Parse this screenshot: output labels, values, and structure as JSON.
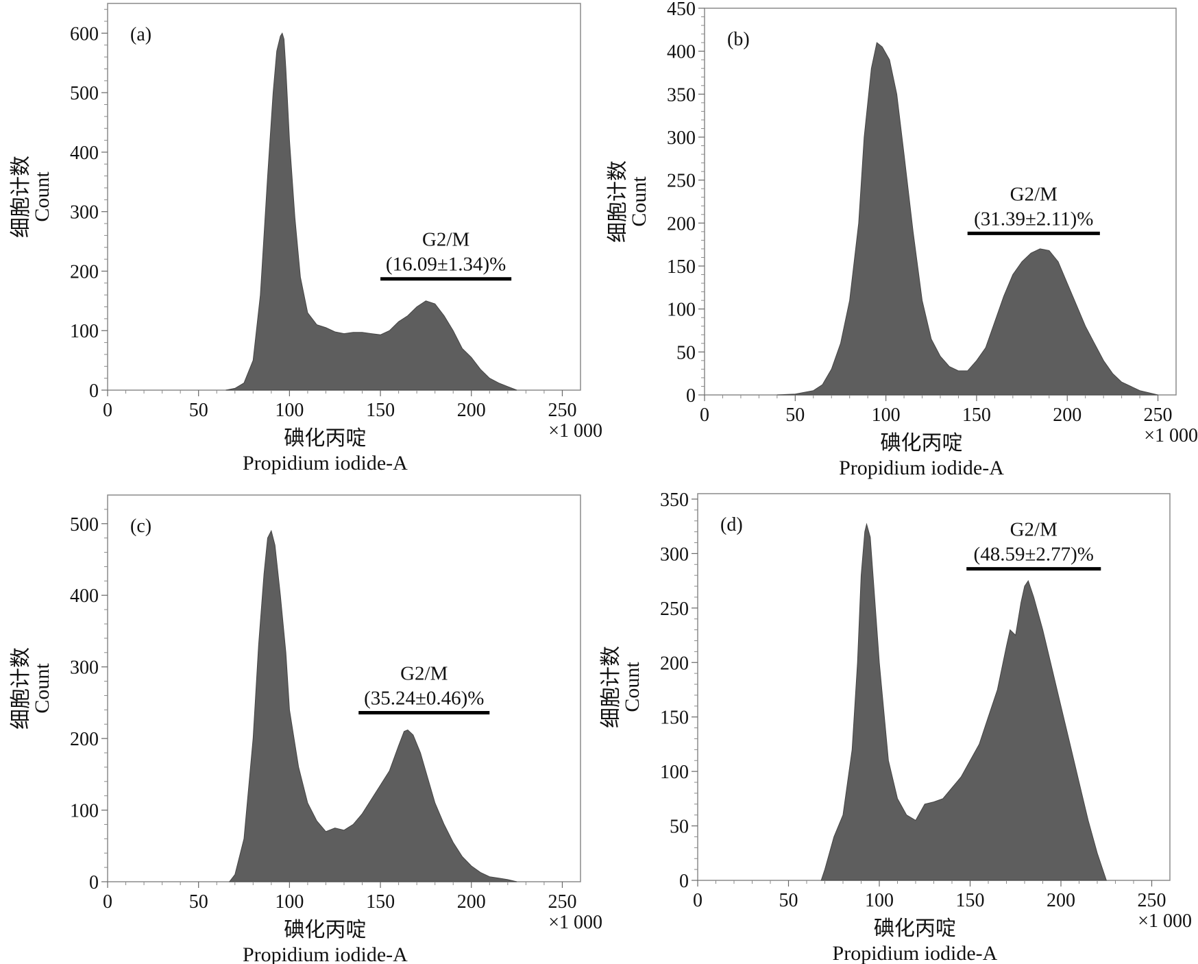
{
  "chart_data": [
    {
      "type": "area",
      "panel_label": "(a)",
      "ylabel_cn": "细胞计数",
      "ylabel_en": "Count",
      "xlabel_cn": "碘化丙啶",
      "xlabel_en": "Propidium iodide-A",
      "x_multiplier": "×1 000",
      "xlim": [
        0,
        260
      ],
      "ylim": [
        0,
        650
      ],
      "x_ticks": [
        0,
        50,
        100,
        150,
        200,
        250
      ],
      "y_ticks": [
        0,
        100,
        200,
        300,
        400,
        500,
        600
      ],
      "gate": {
        "label": "G2/M",
        "value": "(16.09±1.34)%",
        "x_start": 150,
        "x_end": 222,
        "y": 187
      },
      "series": [
        {
          "x": [
            65,
            70,
            75,
            80,
            84,
            88,
            91,
            93,
            95,
            96,
            97,
            98,
            100,
            103,
            106,
            110,
            115,
            120,
            125,
            130,
            135,
            140,
            145,
            150,
            155,
            160,
            165,
            170,
            175,
            180,
            185,
            190,
            195,
            200,
            205,
            210,
            215,
            220,
            225
          ],
          "y": [
            0,
            3,
            12,
            50,
            160,
            360,
            500,
            570,
            595,
            600,
            590,
            540,
            420,
            290,
            190,
            130,
            110,
            105,
            98,
            95,
            97,
            97,
            95,
            93,
            100,
            115,
            125,
            140,
            150,
            145,
            125,
            100,
            70,
            55,
            35,
            20,
            12,
            6,
            0
          ]
        }
      ]
    },
    {
      "type": "area",
      "panel_label": "(b)",
      "ylabel_cn": "细胞计数",
      "ylabel_en": "Count",
      "xlabel_cn": "碘化丙啶",
      "xlabel_en": "Propidium iodide-A",
      "x_multiplier": "×1 000",
      "xlim": [
        0,
        260
      ],
      "ylim": [
        0,
        450
      ],
      "x_ticks": [
        0,
        50,
        100,
        150,
        200,
        250
      ],
      "y_ticks": [
        0,
        50,
        100,
        150,
        200,
        250,
        300,
        350,
        400,
        450
      ],
      "gate": {
        "label": "G2/M",
        "value": "(31.39±2.11)%",
        "x_start": 145,
        "x_end": 218,
        "y": 188
      },
      "series": [
        {
          "x": [
            40,
            50,
            60,
            65,
            70,
            75,
            80,
            85,
            88,
            92,
            95,
            98,
            102,
            106,
            110,
            115,
            120,
            125,
            130,
            135,
            140,
            145,
            150,
            155,
            160,
            165,
            170,
            175,
            180,
            185,
            190,
            195,
            200,
            205,
            210,
            215,
            220,
            225,
            230,
            240,
            250
          ],
          "y": [
            0,
            1,
            5,
            12,
            30,
            60,
            110,
            200,
            300,
            380,
            410,
            405,
            390,
            350,
            280,
            190,
            110,
            65,
            45,
            33,
            28,
            28,
            40,
            55,
            85,
            115,
            140,
            155,
            165,
            170,
            168,
            155,
            130,
            105,
            80,
            60,
            40,
            25,
            15,
            5,
            0
          ]
        }
      ]
    },
    {
      "type": "area",
      "panel_label": "(c)",
      "ylabel_cn": "细胞计数",
      "ylabel_en": "Count",
      "xlabel_cn": "碘化丙啶",
      "xlabel_en": "Propidium iodide-A",
      "x_multiplier": "×1 000",
      "xlim": [
        0,
        260
      ],
      "ylim": [
        0,
        540
      ],
      "x_ticks": [
        0,
        50,
        100,
        150,
        200,
        250
      ],
      "y_ticks": [
        0,
        100,
        200,
        300,
        400,
        500
      ],
      "gate": {
        "label": "G2/M",
        "value": "(35.24±0.46)%",
        "x_start": 138,
        "x_end": 210,
        "y": 236
      },
      "series": [
        {
          "x": [
            67,
            70,
            75,
            80,
            83,
            86,
            88,
            90,
            92,
            95,
            98,
            100,
            105,
            110,
            115,
            120,
            125,
            130,
            135,
            140,
            145,
            150,
            155,
            160,
            163,
            165,
            168,
            172,
            176,
            180,
            185,
            190,
            195,
            200,
            205,
            210,
            215,
            220,
            225
          ],
          "y": [
            0,
            10,
            60,
            200,
            330,
            430,
            480,
            490,
            470,
            400,
            320,
            240,
            160,
            110,
            85,
            70,
            75,
            72,
            80,
            95,
            115,
            135,
            155,
            190,
            210,
            212,
            205,
            180,
            145,
            110,
            80,
            55,
            35,
            22,
            13,
            7,
            5,
            3,
            0
          ]
        }
      ]
    },
    {
      "type": "area",
      "panel_label": "(d)",
      "ylabel_cn": "细胞计数",
      "ylabel_en": "Count",
      "xlabel_cn": "碘化丙啶",
      "xlabel_en": "Propidium iodide-A",
      "x_multiplier": "×1 000",
      "xlim": [
        0,
        260
      ],
      "ylim": [
        0,
        355
      ],
      "x_ticks": [
        0,
        50,
        100,
        150,
        200,
        250
      ],
      "y_ticks": [
        0,
        50,
        100,
        150,
        200,
        250,
        300,
        350
      ],
      "gate": {
        "label": "G2/M",
        "value": "(48.59±2.77)%",
        "x_start": 148,
        "x_end": 222,
        "y": 286
      },
      "series": [
        {
          "x": [
            68,
            70,
            75,
            80,
            85,
            88,
            90,
            92,
            93,
            95,
            97,
            100,
            105,
            110,
            115,
            120,
            125,
            130,
            135,
            140,
            145,
            150,
            155,
            160,
            165,
            170,
            172,
            175,
            178,
            180,
            182,
            185,
            190,
            195,
            200,
            205,
            210,
            215,
            220,
            225
          ],
          "y": [
            0,
            10,
            40,
            60,
            120,
            200,
            280,
            320,
            327,
            315,
            270,
            200,
            110,
            75,
            60,
            55,
            70,
            72,
            75,
            85,
            95,
            110,
            125,
            150,
            175,
            215,
            230,
            225,
            255,
            270,
            275,
            260,
            230,
            195,
            160,
            125,
            90,
            55,
            25,
            0
          ]
        }
      ]
    }
  ]
}
